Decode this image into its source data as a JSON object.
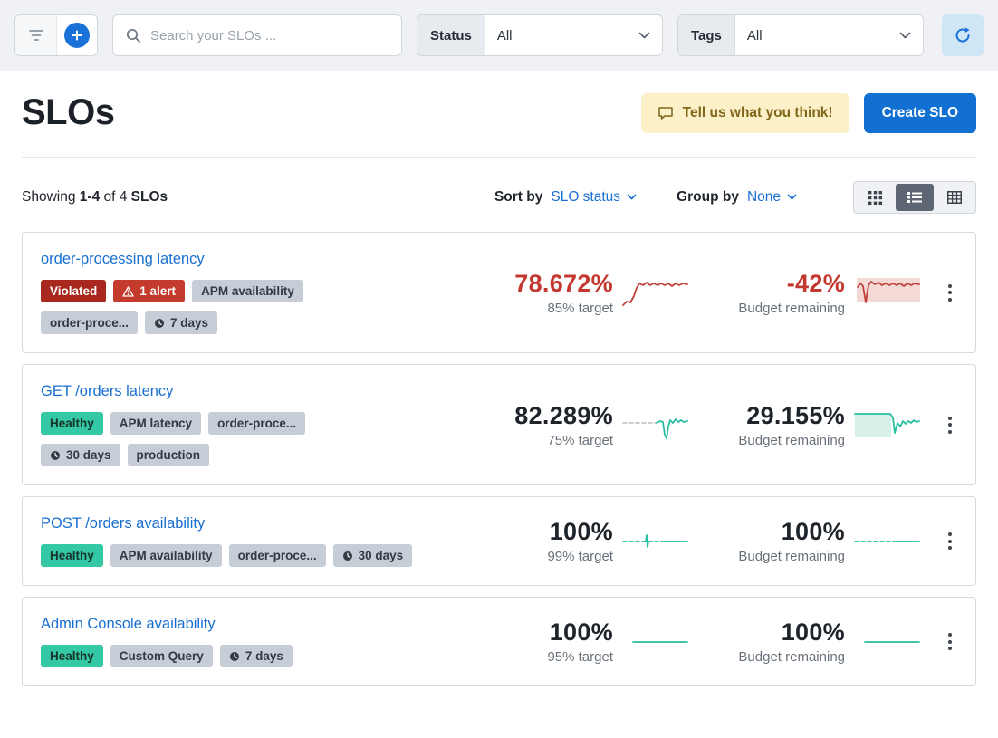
{
  "colors": {
    "accent_blue": "#186fd1",
    "red": "#c2413a",
    "red_fill": "#f3dad7",
    "teal": "#25bfa1",
    "teal_fill": "#d7f0ea",
    "gray_dash": "#c2c8cf"
  },
  "toolbar": {
    "search_placeholder": "Search your SLOs ...",
    "status_label": "Status",
    "status_value": "All",
    "tags_label": "Tags",
    "tags_value": "All"
  },
  "header": {
    "title": "SLOs",
    "feedback_label": "Tell us what you think!",
    "create_label": "Create SLO"
  },
  "list_controls": {
    "showing_prefix": "Showing",
    "showing_range": "1-4",
    "showing_of": "of 4",
    "showing_noun": "SLOs",
    "sort_by_label": "Sort by",
    "sort_by_value": "SLO status",
    "group_by_label": "Group by",
    "group_by_value": "None"
  },
  "cards": [
    {
      "title": "order-processing latency",
      "badge_rows": [
        [
          {
            "label": "Violated",
            "type": "violated"
          },
          {
            "label": "1 alert",
            "type": "alert"
          },
          {
            "label": "APM availability",
            "type": "gray"
          }
        ],
        [
          {
            "label": "order-proce...",
            "type": "gray"
          },
          {
            "label": "7 days",
            "type": "time"
          }
        ]
      ],
      "status": {
        "value": "78.672%",
        "caption": "85% target",
        "tone": "red",
        "spark": "red_rise"
      },
      "budget": {
        "value": "-42%",
        "caption": "Budget remaining",
        "tone": "red",
        "spark": "red_rise_shaded"
      }
    },
    {
      "title": "GET /orders latency",
      "badge_rows": [
        [
          {
            "label": "Healthy",
            "type": "healthy"
          },
          {
            "label": "APM latency",
            "type": "gray"
          },
          {
            "label": "order-proce...",
            "type": "gray"
          }
        ],
        [
          {
            "label": "30 days",
            "type": "time"
          },
          {
            "label": "production",
            "type": "gray"
          }
        ]
      ],
      "status": {
        "value": "82.289%",
        "caption": "75% target",
        "tone": "dark",
        "spark": "dash_then_dip"
      },
      "budget": {
        "value": "29.155%",
        "caption": "Budget remaining",
        "tone": "dark",
        "spark": "teal_dip_shaded"
      }
    },
    {
      "title": "POST /orders availability",
      "badge_rows": [
        [
          {
            "label": "Healthy",
            "type": "healthy"
          },
          {
            "label": "APM availability",
            "type": "gray"
          },
          {
            "label": "order-proce...",
            "type": "gray"
          },
          {
            "label": "30 days",
            "type": "time"
          }
        ]
      ],
      "status": {
        "value": "100%",
        "caption": "99% target",
        "tone": "dark",
        "spark": "dash_flat"
      },
      "budget": {
        "value": "100%",
        "caption": "Budget remaining",
        "tone": "dark",
        "spark": "dash_flat2"
      }
    },
    {
      "title": "Admin Console availability",
      "badge_rows": [
        [
          {
            "label": "Healthy",
            "type": "healthy"
          },
          {
            "label": "Custom Query",
            "type": "gray"
          },
          {
            "label": "7 days",
            "type": "time"
          }
        ]
      ],
      "status": {
        "value": "100%",
        "caption": "95% target",
        "tone": "dark",
        "spark": "flat_solid"
      },
      "budget": {
        "value": "100%",
        "caption": "Budget remaining",
        "tone": "dark",
        "spark": "flat_solid"
      }
    }
  ]
}
